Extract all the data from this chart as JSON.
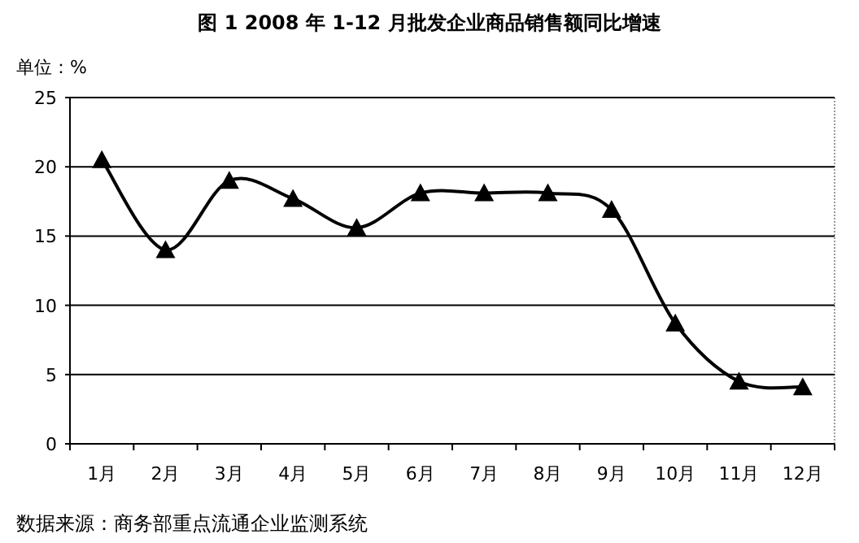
{
  "chart_data": {
    "type": "line",
    "title": "图 1 2008 年 1-12 月批发企业商品销售额同比增速",
    "ylabel": "单位：%",
    "annotations": [
      "数据来源：商务部重点流通企业监测系统"
    ],
    "categories": [
      "1月",
      "2月",
      "3月",
      "4月",
      "5月",
      "6月",
      "7月",
      "8月",
      "9月",
      "10月",
      "11月",
      "12月"
    ],
    "series": [
      {
        "color": "#000000",
        "values": [
          20.5,
          14.0,
          19.0,
          17.7,
          15.6,
          18.1,
          18.1,
          18.1,
          16.9,
          8.7,
          4.5,
          4.1
        ]
      }
    ],
    "ylim": [
      0,
      25
    ],
    "yticks": [
      0,
      5,
      10,
      15,
      20,
      25
    ],
    "grid": "y",
    "marker": "triangle",
    "line_style": "solid"
  }
}
